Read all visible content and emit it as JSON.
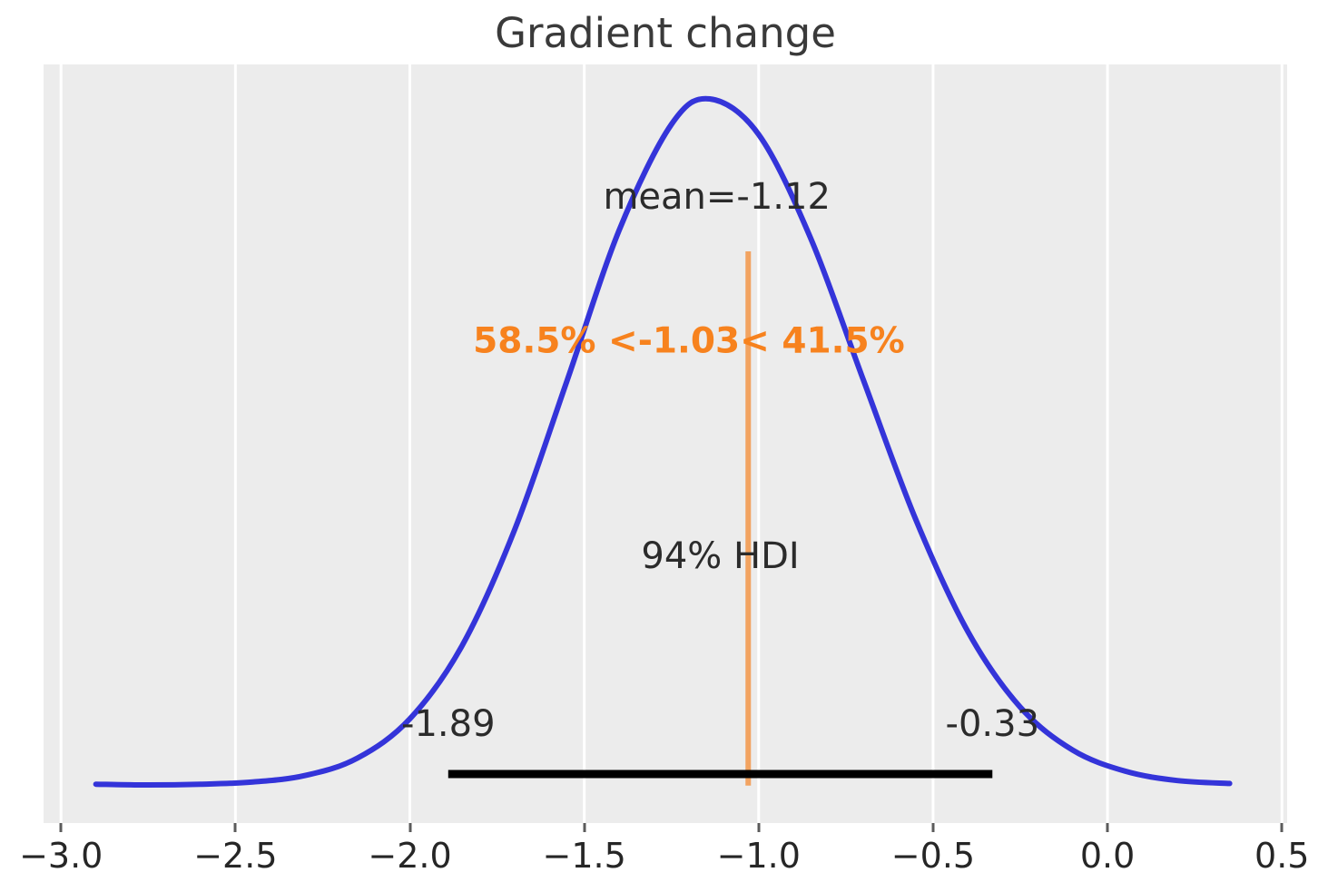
{
  "chart_data": {
    "type": "area",
    "subtype": "kde-posterior-density",
    "title": "Gradient change",
    "xlabel": "",
    "ylabel": "",
    "xlim": [
      -3.05,
      0.515
    ],
    "ylim": [
      -0.0475,
      0.9975
    ],
    "grid": "vertical-white",
    "legend": "none",
    "xticks": {
      "values": [
        -3.0,
        -2.5,
        -2.0,
        -1.5,
        -1.0,
        -0.5,
        0.0,
        0.5
      ],
      "labels": [
        "−3.0",
        "−2.5",
        "−2.0",
        "−1.5",
        "−1.0",
        "−0.5",
        "0.0",
        "0.5"
      ]
    },
    "kde": {
      "x": [
        -2.9,
        -2.75,
        -2.6,
        -2.45,
        -2.3,
        -2.15,
        -2.0,
        -1.85,
        -1.7,
        -1.55,
        -1.4,
        -1.25,
        -1.14,
        -1.0,
        -0.85,
        -0.7,
        -0.55,
        -0.4,
        -0.25,
        -0.1,
        0.05,
        0.2,
        0.35
      ],
      "density": [
        0.006,
        0.005,
        0.006,
        0.009,
        0.018,
        0.042,
        0.096,
        0.197,
        0.356,
        0.561,
        0.769,
        0.915,
        0.95,
        0.901,
        0.757,
        0.563,
        0.371,
        0.216,
        0.112,
        0.053,
        0.024,
        0.011,
        0.007
      ]
    },
    "annotations": {
      "mean": {
        "text": "mean=-1.12",
        "value": -1.12,
        "x": -1.12,
        "y": 0.815
      },
      "reference": {
        "text": "58.5% <-1.03< 41.5%",
        "value": -1.03,
        "pct_below": "58.5%",
        "pct_above": "41.5%",
        "text_x": -1.2,
        "text_y": 0.615,
        "line_y": [
          0.004,
          0.74
        ]
      },
      "hdi": {
        "label": "94% HDI",
        "label_x": -1.11,
        "label_y": 0.32,
        "lower": -1.89,
        "upper": -0.33,
        "lower_text": "-1.89",
        "upper_text": "-0.33",
        "bounds_label_y": 0.089,
        "bar_y": 0.02
      }
    },
    "colors": {
      "curve": "#3434d9",
      "panel_bg": "#ececec",
      "gridline": "#ffffff",
      "hdi_bar": "#000000",
      "reference_line": "#f2a361",
      "reference_text": "#f7821e",
      "text": "#2b2b2b",
      "tick": "#5b5b5b"
    }
  }
}
